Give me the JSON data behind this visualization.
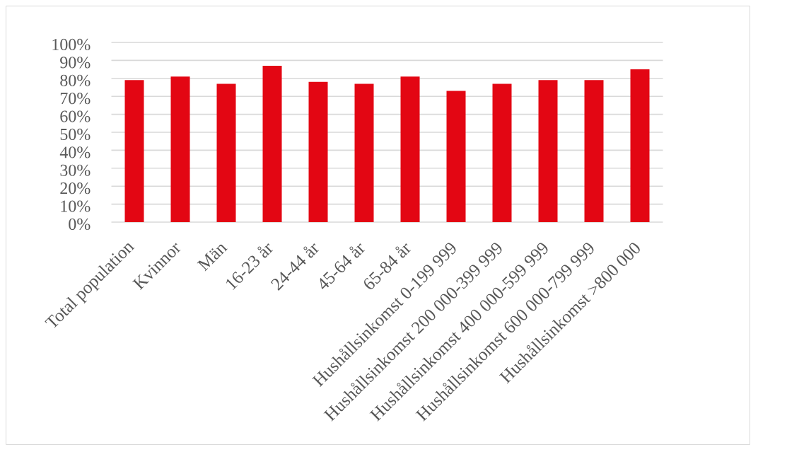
{
  "chart_data": {
    "type": "bar",
    "categories": [
      "Total population",
      "Kvinnor",
      "Män",
      "16-23 år",
      "24-44 år",
      "45-64 år",
      "65-84 år",
      "Hushållsinkomst 0-199 999",
      "Hushållsinkomst 200 000-399 999",
      "Hushållsinkomst 400 000-599 999",
      "Hushållsinkomst 600 000-799 999",
      "Hushållsinkomst >800 000"
    ],
    "values": [
      79,
      81,
      77,
      87,
      78,
      77,
      81,
      73,
      77,
      79,
      79,
      85
    ],
    "color": "#e30613",
    "ylim": [
      0,
      100
    ],
    "yticks": [
      {
        "value": 0,
        "label": "0%"
      },
      {
        "value": 10,
        "label": "10%"
      },
      {
        "value": 20,
        "label": "20%"
      },
      {
        "value": 30,
        "label": "30%"
      },
      {
        "value": 40,
        "label": "40%"
      },
      {
        "value": 50,
        "label": "50%"
      },
      {
        "value": 60,
        "label": "60%"
      },
      {
        "value": 70,
        "label": "70%"
      },
      {
        "value": 80,
        "label": "80%"
      },
      {
        "value": 90,
        "label": "90%"
      },
      {
        "value": 100,
        "label": "100%"
      }
    ],
    "grid": "y"
  }
}
